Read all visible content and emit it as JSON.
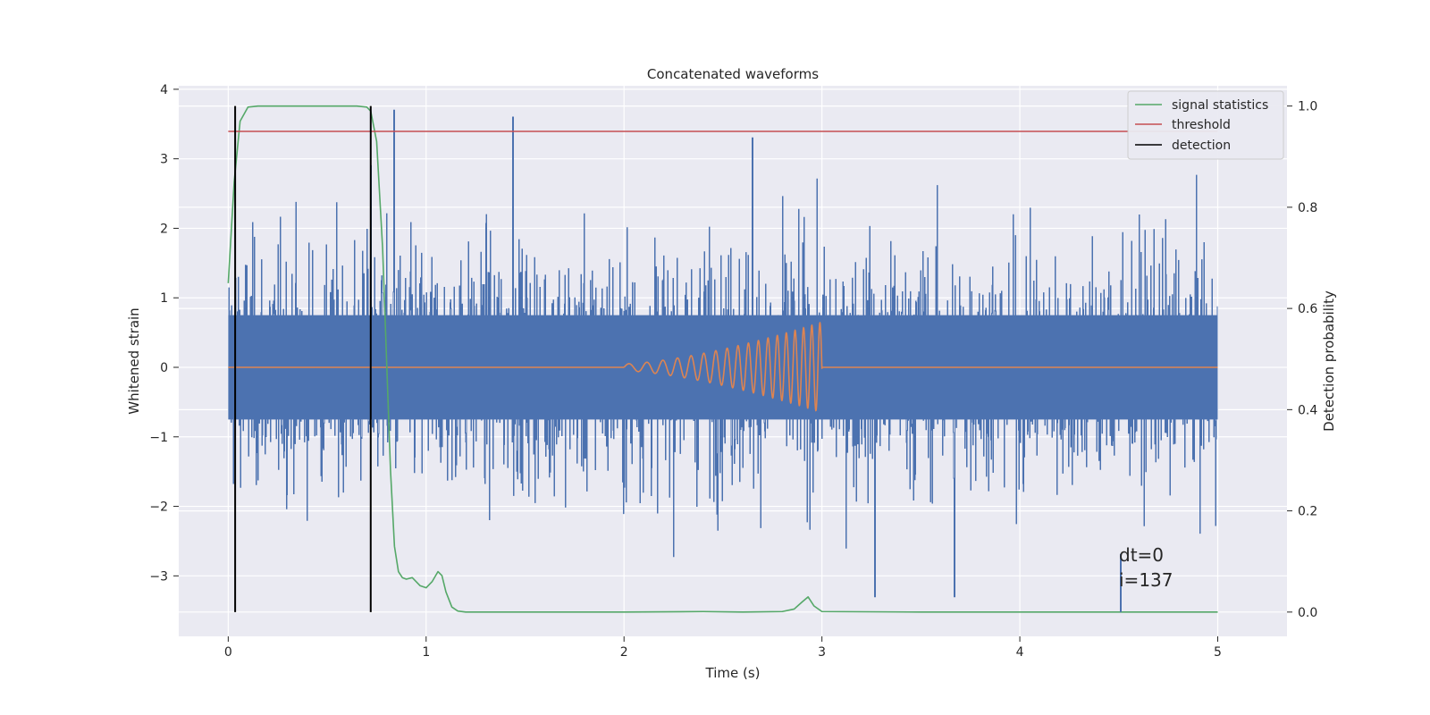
{
  "chart_data": {
    "type": "line",
    "title": "Concatenated waveforms",
    "xlabel": "Time (s)",
    "ylabel": "Whitened strain",
    "y2label": "Detection probability",
    "xlim": [
      -0.25,
      5.35
    ],
    "ylim": [
      -3.87,
      4.05
    ],
    "y2lim": [
      -0.048,
      1.04
    ],
    "xticks": [
      0,
      1,
      2,
      3,
      4,
      5
    ],
    "yticks": [
      -3,
      -2,
      -1,
      0,
      1,
      2,
      3,
      4
    ],
    "y2ticks": [
      0.0,
      0.2,
      0.4,
      0.6,
      0.8,
      1.0
    ],
    "xtick_labels": [
      "0",
      "1",
      "2",
      "3",
      "4",
      "5"
    ],
    "ytick_labels": [
      "−3",
      "−2",
      "−1",
      "0",
      "1",
      "2",
      "3",
      "4"
    ],
    "y2tick_labels": [
      "0.0",
      "0.2",
      "0.4",
      "0.6",
      "0.8",
      "1.0"
    ],
    "grid": true,
    "legend_position": "top-right",
    "colors": {
      "strain": "#4c72b0",
      "template": "#dd8452",
      "signal": "#55a868",
      "threshold": "#c44e52",
      "detection": "#000000",
      "plot_bg": "#eaeaf2",
      "grid": "#ffffff"
    },
    "series": [
      {
        "id": "strain",
        "axis": "left",
        "description_free": true,
        "x_range": [
          0,
          5
        ],
        "core_amplitude": 0.75,
        "peak_examples": [
          {
            "x": 0.72,
            "y": 2.9
          },
          {
            "x": 0.84,
            "y": 3.7
          },
          {
            "x": 1.44,
            "y": 3.6
          },
          {
            "x": 2.65,
            "y": 3.3
          },
          {
            "x": 3.27,
            "y": -3.3
          },
          {
            "x": 3.67,
            "y": -3.3
          }
        ]
      },
      {
        "id": "template",
        "axis": "left",
        "x_start": 2.0,
        "x_end": 3.0,
        "amplitude_start": 0.05,
        "amplitude_end": 0.65,
        "freq_start_hz": 10,
        "freq_end_hz": 25
      },
      {
        "id": "signal",
        "axis": "right",
        "name": "signal statistics",
        "x": [
          0,
          0.03,
          0.06,
          0.1,
          0.15,
          0.3,
          0.5,
          0.65,
          0.7,
          0.72,
          0.75,
          0.78,
          0.8,
          0.82,
          0.84,
          0.86,
          0.88,
          0.9,
          0.93,
          0.97,
          1.0,
          1.03,
          1.06,
          1.08,
          1.1,
          1.13,
          1.16,
          1.2,
          1.5,
          2.0,
          2.4,
          2.6,
          2.8,
          2.86,
          2.9,
          2.93,
          2.96,
          3.0,
          3.5,
          4.0,
          4.5,
          5.0
        ],
        "y": [
          0.65,
          0.85,
          0.97,
          0.998,
          1.0,
          1.0,
          1.0,
          1.0,
          0.998,
          0.99,
          0.93,
          0.72,
          0.5,
          0.28,
          0.13,
          0.08,
          0.068,
          0.065,
          0.068,
          0.052,
          0.048,
          0.06,
          0.08,
          0.072,
          0.04,
          0.01,
          0.002,
          0.0,
          0.0,
          0.0,
          0.001,
          0.0,
          0.001,
          0.006,
          0.02,
          0.03,
          0.012,
          0.001,
          0.0,
          0.0,
          0.0,
          0.0
        ]
      },
      {
        "id": "threshold",
        "axis": "right",
        "name": "threshold",
        "x": [
          0,
          5
        ],
        "y": [
          0.95,
          0.95
        ]
      },
      {
        "id": "detection",
        "axis": "right",
        "name": "detection",
        "x": [
          0.035,
          0.72,
          4.51
        ],
        "y_from": 0.0,
        "y_to": [
          1.0,
          1.0,
          0.115
        ]
      }
    ],
    "annotations": [
      "dt=0",
      "i=137"
    ]
  }
}
